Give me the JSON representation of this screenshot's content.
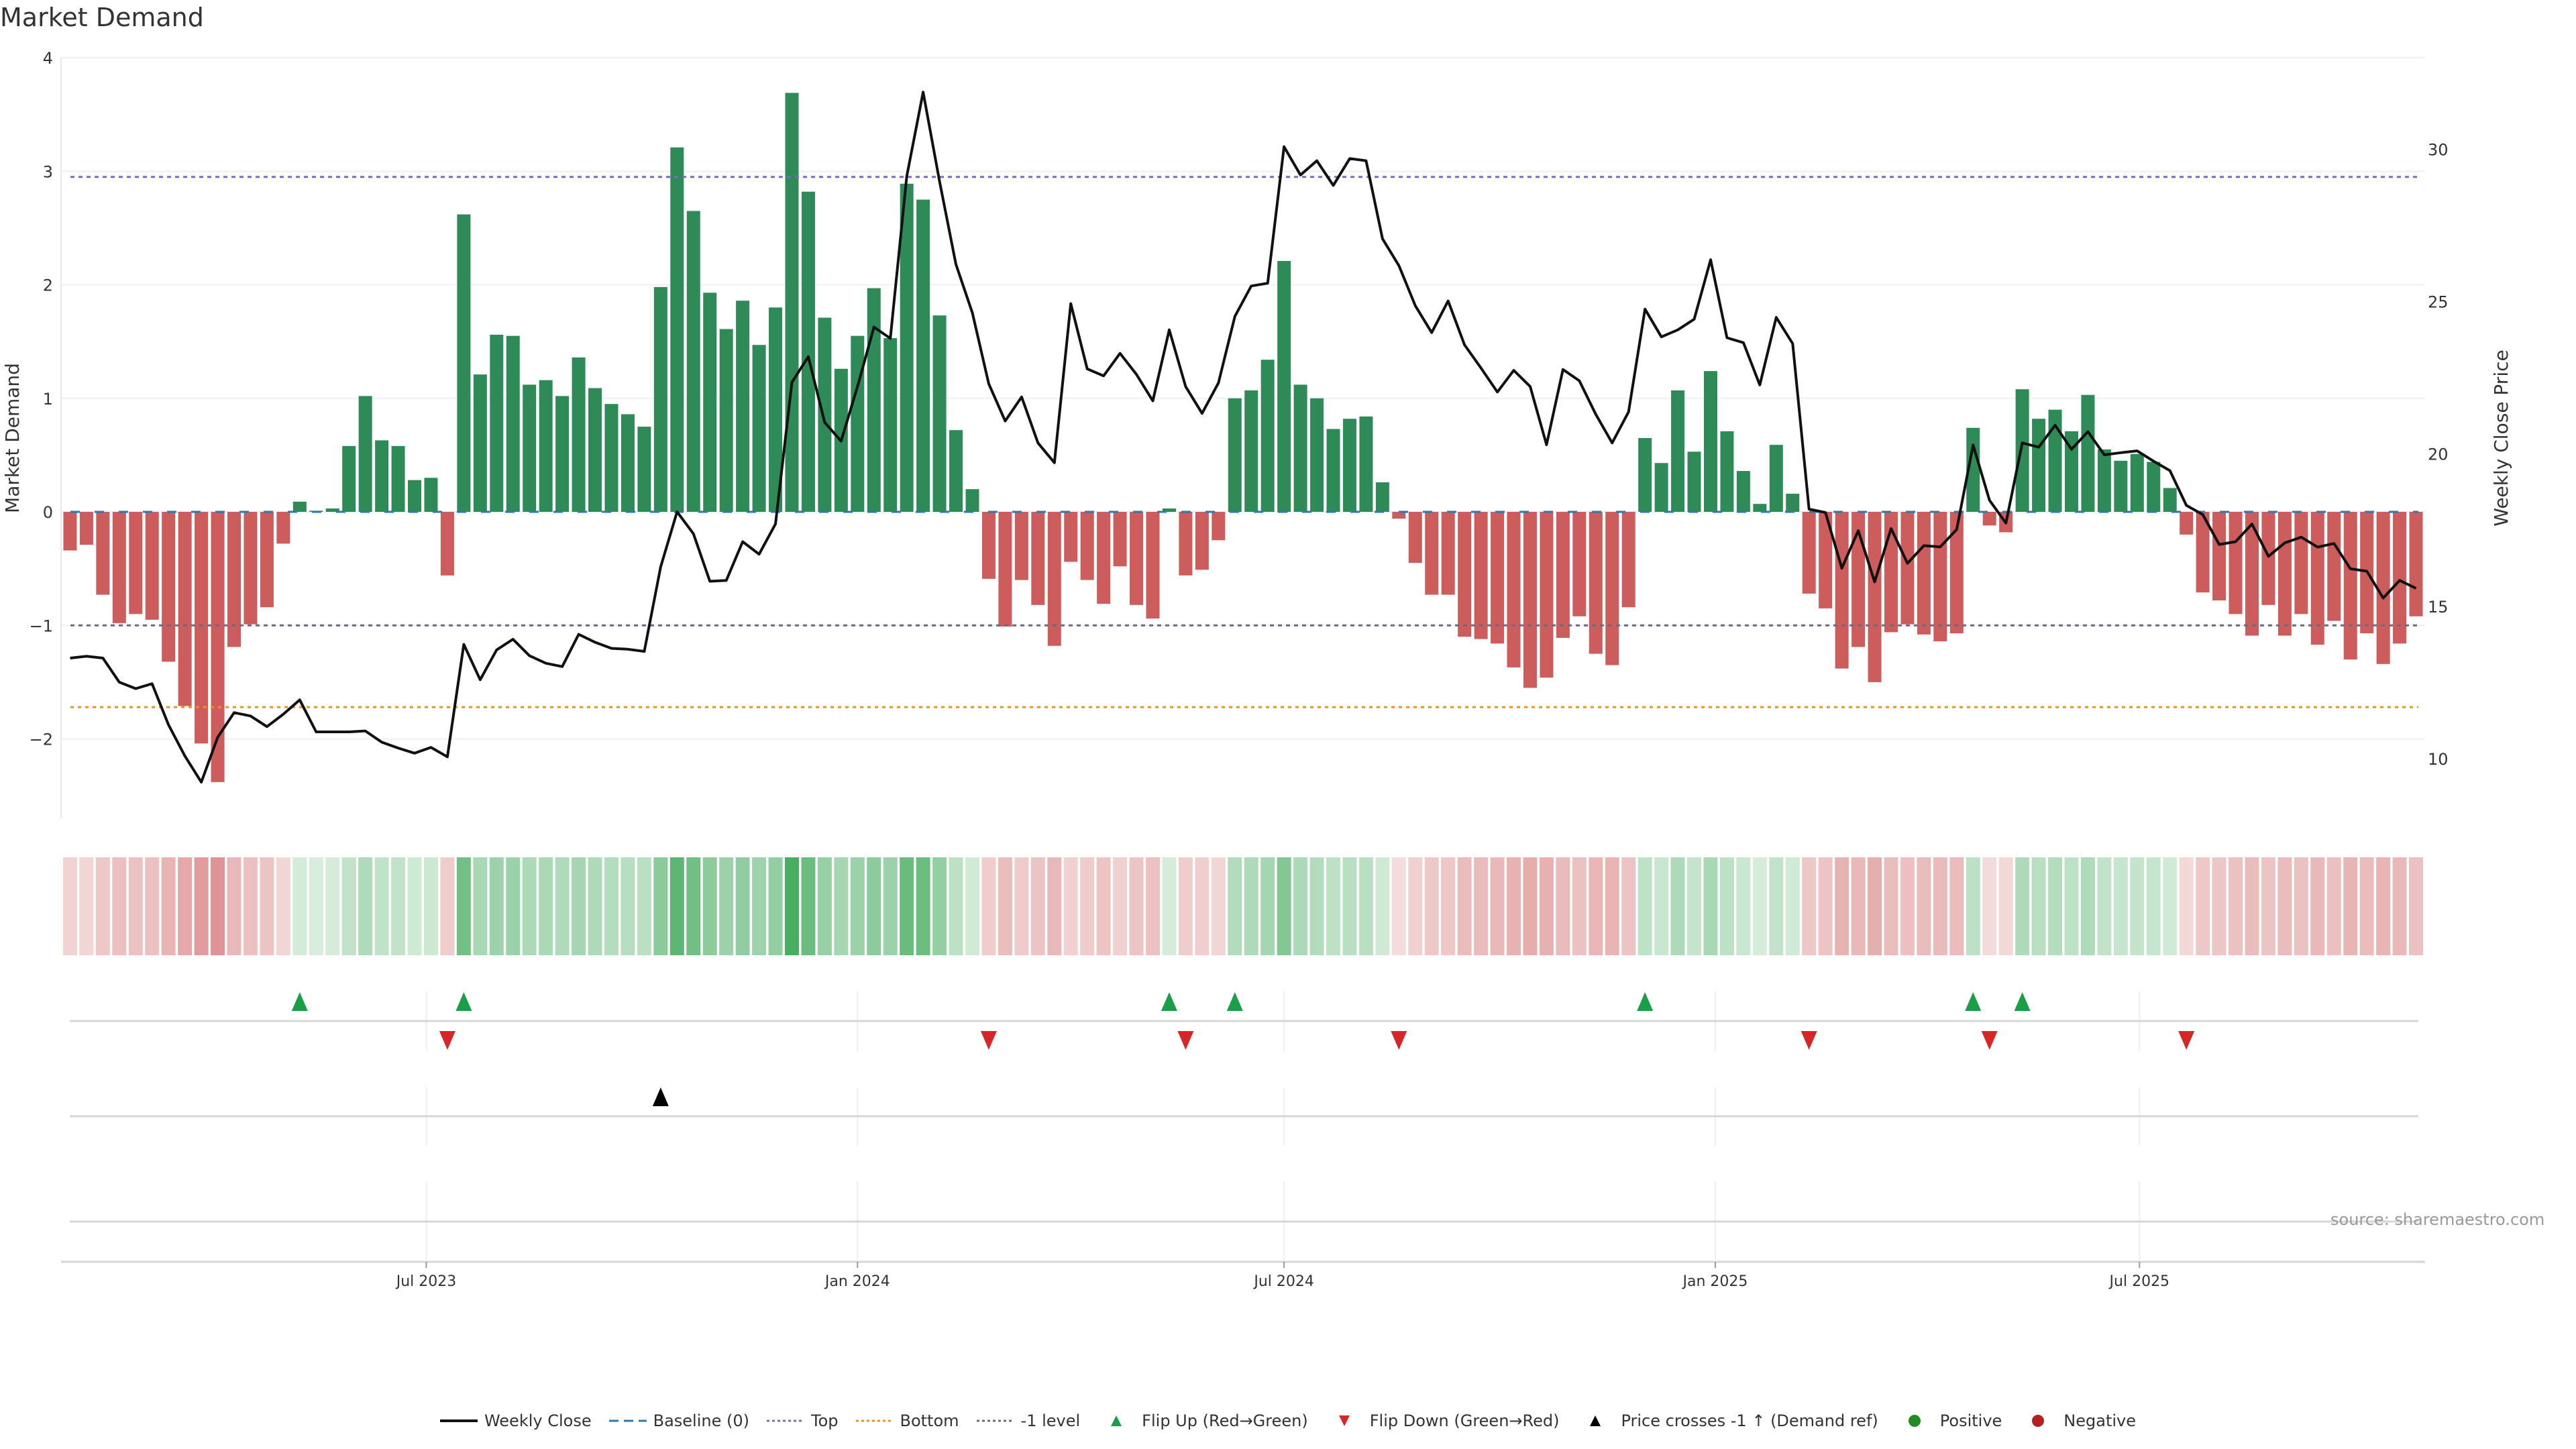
{
  "title": "Market Demand",
  "source": "source: sharemaestro.com",
  "colors": {
    "positive_bar": "#2e8b57",
    "negative_bar": "#cd5c5c",
    "strip_pos": "#3aa655",
    "strip_neg": "#cd5c5c",
    "top": "#7b68c8",
    "bottom": "#f0901e",
    "minus_one": "#6b6b7b",
    "baseline": "#2a7ab0",
    "flip_up": "#1a9e48",
    "flip_down": "#d62728",
    "cross": "#000000",
    "positive_dot": "#228b22",
    "negative_dot": "#b22222"
  },
  "legend": [
    {
      "label": "Weekly Close",
      "kind": "line"
    },
    {
      "label": "Baseline (0)",
      "kind": "baseline"
    },
    {
      "label": "Top",
      "kind": "top"
    },
    {
      "label": "Bottom",
      "kind": "bottom"
    },
    {
      "label": "-1 level",
      "kind": "minus_one"
    },
    {
      "label": "Flip Up (Red→Green)",
      "kind": "flip_up"
    },
    {
      "label": "Flip Down (Green→Red)",
      "kind": "flip_down"
    },
    {
      "label": "Price crosses -1 ↑ (Demand ref)",
      "kind": "cross"
    },
    {
      "label": "Positive",
      "kind": "positive_dot"
    },
    {
      "label": "Negative",
      "kind": "negative_dot"
    }
  ],
  "chart_data": {
    "type": "bar",
    "title": "Market Demand",
    "xlabel": "",
    "ylabel": "Market Demand",
    "y2label": "Weekly Close Price",
    "start_week": "2023-01-30",
    "frequency": "weekly",
    "ylim": [
      -2.7,
      4.0
    ],
    "y2lim": [
      8.04,
      33.0
    ],
    "yticks": [
      -2,
      -1,
      0,
      1,
      2,
      3,
      4
    ],
    "ytick_labels": [
      "−2",
      "−1",
      "0",
      "1",
      "2",
      "3",
      "4"
    ],
    "y2ticks": [
      10,
      15,
      20,
      25,
      30
    ],
    "y2tick_labels": [
      "10",
      "15",
      "20",
      "25",
      "30"
    ],
    "xticks": [
      {
        "label": "Jul 2023",
        "date": "2023-07-01"
      },
      {
        "label": "Jan 2024",
        "date": "2024-01-01"
      },
      {
        "label": "Jul 2024",
        "date": "2024-07-01"
      },
      {
        "label": "Jan 2025",
        "date": "2025-01-01"
      },
      {
        "label": "Jul 2025",
        "date": "2025-07-01"
      }
    ],
    "levels": {
      "top": 2.95,
      "bottom": -1.72,
      "minus_one": -1,
      "baseline": 0
    },
    "demand": [
      -0.34,
      -0.29,
      -0.73,
      -0.98,
      -0.9,
      -0.95,
      -1.32,
      -1.71,
      -2.04,
      -2.38,
      -1.19,
      -0.99,
      -0.84,
      -0.28,
      0.09,
      0.01,
      0.03,
      0.58,
      1.02,
      0.63,
      0.58,
      0.28,
      0.3,
      -0.56,
      2.62,
      1.21,
      1.56,
      1.55,
      1.12,
      1.16,
      1.02,
      1.36,
      1.09,
      0.95,
      0.86,
      0.75,
      1.98,
      3.21,
      2.65,
      1.93,
      1.61,
      1.86,
      1.47,
      1.8,
      3.69,
      2.82,
      1.71,
      1.26,
      1.55,
      1.97,
      1.53,
      2.89,
      2.75,
      1.73,
      0.72,
      0.2,
      -0.59,
      -1.01,
      -0.6,
      -0.82,
      -1.18,
      -0.44,
      -0.6,
      -0.81,
      -0.48,
      -0.82,
      -0.94,
      0.03,
      -0.56,
      -0.51,
      -0.25,
      1.0,
      1.07,
      1.34,
      2.21,
      1.12,
      1.0,
      0.73,
      0.82,
      0.84,
      0.26,
      -0.06,
      -0.45,
      -0.73,
      -0.73,
      -1.1,
      -1.12,
      -1.16,
      -1.37,
      -1.55,
      -1.46,
      -1.11,
      -0.92,
      -1.25,
      -1.35,
      -0.84,
      0.65,
      0.43,
      1.07,
      0.53,
      1.24,
      0.71,
      0.36,
      0.07,
      0.59,
      0.16,
      -0.72,
      -0.85,
      -1.38,
      -1.19,
      -1.5,
      -1.06,
      -0.99,
      -1.08,
      -1.14,
      -1.07,
      0.74,
      -0.12,
      -0.18,
      1.08,
      0.82,
      0.9,
      0.71,
      1.03,
      0.55,
      0.45,
      0.51,
      0.44,
      0.21,
      -0.2,
      -0.71,
      -0.78,
      -0.9,
      -1.09,
      -0.82,
      -1.09,
      -0.9,
      -1.17,
      -0.96,
      -1.3,
      -1.07,
      -1.34,
      -1.16,
      -0.92
    ],
    "weekly_close": [
      13.3,
      13.36,
      13.3,
      12.51,
      12.3,
      12.46,
      11.11,
      10.09,
      9.23,
      10.7,
      11.51,
      11.4,
      11.05,
      11.46,
      11.93,
      10.88,
      10.88,
      10.88,
      10.91,
      10.54,
      10.35,
      10.18,
      10.37,
      10.06,
      13.75,
      12.59,
      13.57,
      13.92,
      13.38,
      13.13,
      13.02,
      14.08,
      13.82,
      13.62,
      13.59,
      13.52,
      16.29,
      18.1,
      17.38,
      15.82,
      15.85,
      17.12,
      16.71,
      17.7,
      22.35,
      23.19,
      21.03,
      20.42,
      22.21,
      24.16,
      23.79,
      29.11,
      31.87,
      28.94,
      26.22,
      24.63,
      22.3,
      21.08,
      21.87,
      20.36,
      19.71,
      24.93,
      22.79,
      22.56,
      23.3,
      22.61,
      21.74,
      24.07,
      22.21,
      21.33,
      22.33,
      24.51,
      25.51,
      25.6,
      30.08,
      29.15,
      29.62,
      28.81,
      29.69,
      29.62,
      27.06,
      26.18,
      24.86,
      23.98,
      25.02,
      23.58,
      22.82,
      22.03,
      22.74,
      22.21,
      20.3,
      22.77,
      22.4,
      21.3,
      20.36,
      21.38,
      24.75,
      23.84,
      24.07,
      24.42,
      26.37,
      23.81,
      23.65,
      22.26,
      24.48,
      23.62,
      18.19,
      18.08,
      16.25,
      17.48,
      15.8,
      17.55,
      16.41,
      16.99,
      16.95,
      17.52,
      20.29,
      18.48,
      17.73,
      20.36,
      20.22,
      20.94,
      20.15,
      20.73,
      19.97,
      20.04,
      20.1,
      19.76,
      19.45,
      18.31,
      18.01,
      17.03,
      17.12,
      17.7,
      16.64,
      17.08,
      17.27,
      16.94,
      17.06,
      16.23,
      16.15,
      15.27,
      15.85,
      15.59
    ],
    "flip_up_weeks": [
      14,
      24,
      67,
      71,
      96,
      116,
      119
    ],
    "flip_down_weeks": [
      23,
      56,
      68,
      81,
      106,
      117,
      129
    ],
    "price_cross_weeks": [
      36
    ],
    "legend_placement": "bottom-center",
    "grid": true
  }
}
